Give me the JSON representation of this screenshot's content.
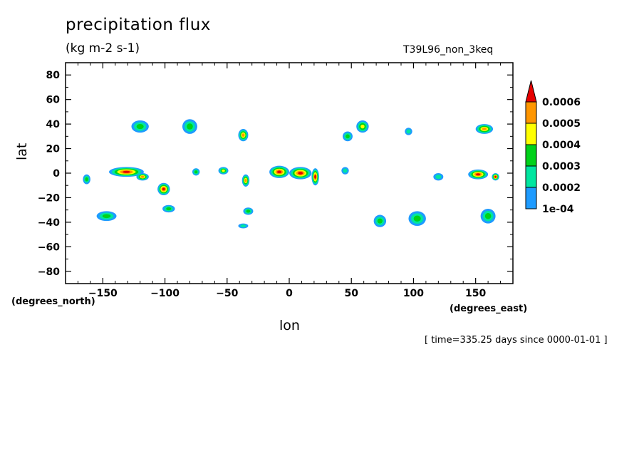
{
  "chart_data": {
    "type": "heatmap",
    "title": "precipitation flux",
    "units": "(kg m-2 s-1)",
    "model_label": "T39L96_non_3keq",
    "xlabel": "lon",
    "ylabel": "lat",
    "x_axis_units": "(degrees_east)",
    "y_axis_units": "(degrees_north)",
    "time_info": "[ time=335.25 days since 0000-01-01 ]",
    "xlim": [
      -180,
      180
    ],
    "ylim": [
      -90,
      90
    ],
    "x_ticks": [
      -150,
      -100,
      -50,
      0,
      50,
      100,
      150
    ],
    "x_tick_labels": [
      "−150",
      "−100",
      "−50",
      "0",
      "50",
      "100",
      "150"
    ],
    "y_ticks": [
      80,
      60,
      40,
      20,
      0,
      -20,
      -40,
      -60,
      -80
    ],
    "y_tick_labels": [
      "80",
      "60",
      "40",
      "20",
      "0",
      "−20",
      "−40",
      "−60",
      "−80"
    ],
    "colorbar": {
      "levels": [
        0.0001,
        0.0002,
        0.0003,
        0.0004,
        0.0005,
        0.0006
      ],
      "labels": [
        "1e-04",
        "0.0002",
        "0.0003",
        "0.0004",
        "0.0005",
        "0.0006"
      ],
      "colors": [
        "#1e9bff",
        "#00e6a0",
        "#00d21a",
        "#ffff00",
        "#ff9600",
        "#e60000"
      ]
    },
    "features": [
      {
        "lon": -131,
        "lat": 1,
        "rx": 14,
        "ry": 4,
        "peak": 6
      },
      {
        "lon": -118,
        "lat": -3,
        "rx": 5,
        "ry": 3,
        "peak": 5
      },
      {
        "lon": -101,
        "lat": -13,
        "rx": 5,
        "ry": 5,
        "peak": 6
      },
      {
        "lon": -163,
        "lat": -5,
        "rx": 3,
        "ry": 4,
        "peak": 3
      },
      {
        "lon": -35,
        "lat": -6,
        "rx": 3,
        "ry": 5,
        "peak": 5
      },
      {
        "lon": -53,
        "lat": 2,
        "rx": 4,
        "ry": 3,
        "peak": 4
      },
      {
        "lon": -75,
        "lat": 1,
        "rx": 3,
        "ry": 3,
        "peak": 3
      },
      {
        "lon": -8,
        "lat": 1,
        "rx": 8,
        "ry": 5,
        "peak": 6
      },
      {
        "lon": 9,
        "lat": 0,
        "rx": 9,
        "ry": 5,
        "peak": 6
      },
      {
        "lon": 21,
        "lat": -3,
        "rx": 3,
        "ry": 7,
        "peak": 6
      },
      {
        "lon": 152,
        "lat": -1,
        "rx": 8,
        "ry": 4,
        "peak": 6
      },
      {
        "lon": 166,
        "lat": -3,
        "rx": 3,
        "ry": 3,
        "peak": 6
      },
      {
        "lon": 120,
        "lat": -3,
        "rx": 4,
        "ry": 3,
        "peak": 2
      },
      {
        "lon": 45,
        "lat": 2,
        "rx": 3,
        "ry": 3,
        "peak": 2
      },
      {
        "lon": -37,
        "lat": 31,
        "rx": 4,
        "ry": 5,
        "peak": 5
      },
      {
        "lon": -80,
        "lat": 38,
        "rx": 6,
        "ry": 6,
        "peak": 3
      },
      {
        "lon": -120,
        "lat": 38,
        "rx": 7,
        "ry": 5,
        "peak": 3
      },
      {
        "lon": 59,
        "lat": 38,
        "rx": 5,
        "ry": 5,
        "peak": 4
      },
      {
        "lon": 47,
        "lat": 30,
        "rx": 4,
        "ry": 4,
        "peak": 3
      },
      {
        "lon": 157,
        "lat": 36,
        "rx": 7,
        "ry": 4,
        "peak": 5
      },
      {
        "lon": 96,
        "lat": 34,
        "rx": 3,
        "ry": 3,
        "peak": 2
      },
      {
        "lon": -33,
        "lat": -31,
        "rx": 4,
        "ry": 3,
        "peak": 3
      },
      {
        "lon": -97,
        "lat": -29,
        "rx": 5,
        "ry": 3,
        "peak": 3
      },
      {
        "lon": -147,
        "lat": -35,
        "rx": 8,
        "ry": 4,
        "peak": 3
      },
      {
        "lon": 103,
        "lat": -37,
        "rx": 7,
        "ry": 6,
        "peak": 3
      },
      {
        "lon": 73,
        "lat": -39,
        "rx": 5,
        "ry": 5,
        "peak": 3
      },
      {
        "lon": 160,
        "lat": -35,
        "rx": 6,
        "ry": 6,
        "peak": 3
      },
      {
        "lon": -37,
        "lat": -43,
        "rx": 4,
        "ry": 2,
        "peak": 2
      }
    ]
  }
}
